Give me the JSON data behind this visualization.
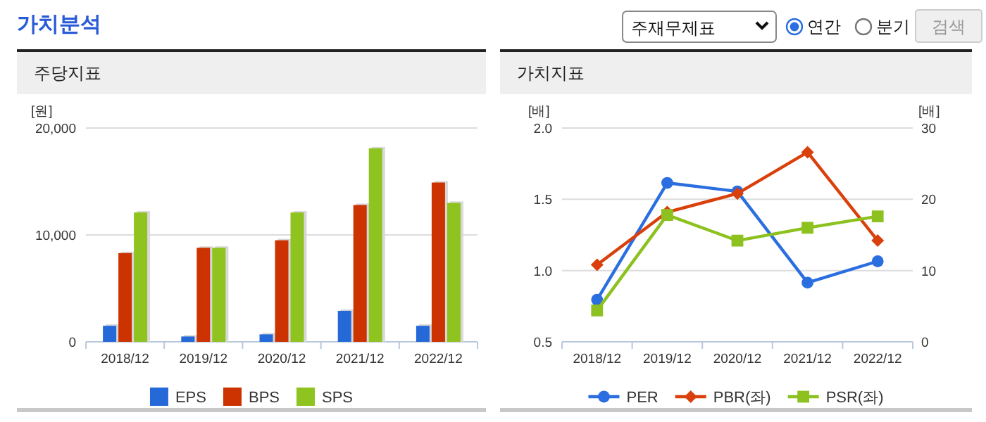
{
  "chart_data": [
    {
      "type": "other",
      "title": "가치분석",
      "annotations": [
        "주재무제표",
        "연간",
        "분기",
        "검색"
      ]
    },
    {
      "type": "bar",
      "title": "주당지표",
      "ylabel": "[원]",
      "categories": [
        "2018/12",
        "2019/12",
        "2020/12",
        "2021/12",
        "2022/12"
      ],
      "series": [
        {
          "name": "EPS",
          "color": "#2569d9",
          "values": [
            1500,
            500,
            700,
            2900,
            1500
          ]
        },
        {
          "name": "BPS",
          "color": "#cc3300",
          "values": [
            8300,
            8800,
            9500,
            12800,
            14900
          ]
        },
        {
          "name": "SPS",
          "color": "#8fc31f",
          "values": [
            12100,
            8800,
            12100,
            18100,
            13000
          ]
        }
      ],
      "ylim": [
        0,
        20000
      ],
      "yticks": [
        0,
        {
          "value": 10000,
          "label": "10,000"
        },
        {
          "value": 20000,
          "label": "20,000"
        }
      ],
      "grid": "y",
      "legend": "bottom"
    },
    {
      "type": "line",
      "title": "가치지표",
      "ylabel": "[배]",
      "y2label": "[배]",
      "categories": [
        "2018/12",
        "2019/12",
        "2020/12",
        "2021/12",
        "2022/12"
      ],
      "series": [
        {
          "name": "PER",
          "color": "#2a6ee0",
          "axis": "y2",
          "marker": "circle",
          "values": [
            5.9,
            22.3,
            21.1,
            8.3,
            11.3
          ]
        },
        {
          "name": "PBR(좌)",
          "color": "#d9400b",
          "axis": "y",
          "marker": "diamond",
          "values": [
            1.04,
            1.41,
            1.54,
            1.83,
            1.21
          ]
        },
        {
          "name": "PSR(좌)",
          "color": "#8cc11f",
          "axis": "y",
          "marker": "square",
          "values": [
            0.72,
            1.39,
            1.21,
            1.3,
            1.38
          ]
        }
      ],
      "ylim": [
        0.5,
        2.0
      ],
      "yticks": [
        0.5,
        {
          "value": 1,
          "label": "1.0"
        },
        1.5,
        {
          "value": 2,
          "label": "2.0"
        }
      ],
      "y2lim": [
        0,
        30
      ],
      "y2ticks": [
        0,
        10,
        20,
        30
      ],
      "grid": "y",
      "legend": "bottom",
      "line_style": "solid"
    }
  ]
}
